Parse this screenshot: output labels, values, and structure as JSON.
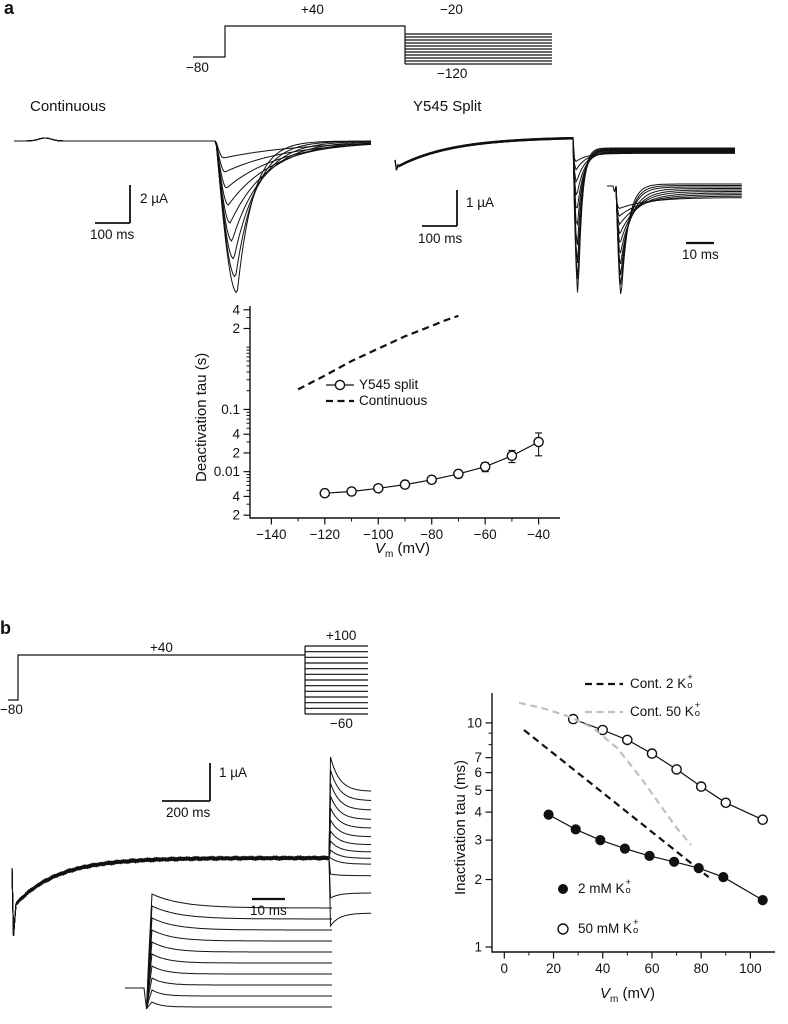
{
  "figure": {
    "panel_a_label": "a",
    "panel_b_label": "b"
  },
  "panel_a": {
    "protocol": {
      "step_label": "+40",
      "fan_top_label": "−20",
      "fan_bottom_label": "−120",
      "holding_label": "−80",
      "fan_count": 11
    },
    "trace_labels": {
      "left": "Continuous",
      "right": "Y545 Split"
    },
    "scalebars": {
      "left_vertical": "2 µA",
      "left_horizontal": "100 ms",
      "right_vertical": "1 µA",
      "right_horizontal": "100 ms",
      "inset": "10 ms"
    },
    "traces": {
      "continuous": {
        "depths": [
          152,
          136,
          118,
          100,
          82,
          64,
          47,
          31,
          17
        ],
        "taus": [
          16,
          20,
          25,
          31,
          38,
          46,
          55,
          65,
          78
        ]
      },
      "y545_main": {
        "depths": [
          148,
          132,
          114,
          96,
          78,
          61,
          45,
          30,
          17,
          8
        ],
        "taus": [
          4,
          4.5,
          5,
          5.5,
          6,
          7,
          8,
          9,
          10,
          11
        ]
      },
      "y545_inset": {
        "flat_start": 184,
        "flat_step": 1.5,
        "depths": [
          112,
          100,
          88,
          76,
          64,
          52,
          41,
          30,
          20,
          11
        ],
        "taus": [
          7,
          8,
          9,
          11,
          13,
          15,
          18,
          21,
          25,
          29
        ]
      }
    }
  },
  "panel_b": {
    "protocol": {
      "step_label": "+40",
      "fan_top_label": "+100",
      "fan_bottom_label": "−60",
      "holding_label": "−80",
      "fan_count": 13
    },
    "scalebars": {
      "vertical": "1 µA",
      "horizontal": "200 ms",
      "inset": "10 ms"
    },
    "traces": {
      "main": {
        "plateau": 858,
        "tail_offsets": [
          -101,
          -88,
          -75,
          -62,
          -50,
          -38,
          -27,
          -17,
          -8,
          0,
          16,
          40,
          68
        ]
      },
      "inset": {
        "flats": [
          908,
          919,
          930,
          941,
          952,
          963,
          974,
          985,
          996,
          1007
        ],
        "peak_drop": [
          14,
          13,
          12,
          11,
          10,
          9,
          8,
          7,
          6,
          5
        ],
        "taus": [
          30,
          27,
          24,
          21,
          18,
          16,
          14,
          12,
          10,
          9
        ]
      }
    }
  },
  "axes": {
    "a": {
      "ylabel": "Deactivation tau (s)",
      "xlabel_v": "V",
      "xlabel_sub": "m",
      "xlabel_rest": " (mV)"
    },
    "b": {
      "ylabel": "Inactivation tau (ms)",
      "xlabel_v": "V",
      "xlabel_sub": "m",
      "xlabel_rest": " (mV)"
    }
  },
  "legend_a": {
    "series1": "Y545 split",
    "series2": "Continuous"
  },
  "legend_b": {
    "cont2": {
      "text": "Cont. 2 K",
      "sup": "+",
      "sub": "o"
    },
    "cont50": {
      "text": "Cont. 50 K",
      "sup": "+",
      "sub": "o"
    },
    "k2": {
      "text": "2 mM K",
      "sup": "+",
      "sub": "o"
    },
    "k50": {
      "text": "50 mM K",
      "sup": "+",
      "sub": "o"
    }
  },
  "chart_data": [
    {
      "type": "scatter",
      "title": "",
      "xlabel": "Vm (mV)",
      "ylabel": "Deactivation tau (s)",
      "grid": false,
      "legend_position": "inside-left",
      "x_ticks": [
        -140,
        -120,
        -100,
        -80,
        -60,
        -40
      ],
      "x_tick_labels": [
        "−140",
        "−120",
        "−100",
        "−80",
        "−60",
        "−40"
      ],
      "x_minor": [
        -130,
        -110,
        -90,
        -70,
        -50
      ],
      "xlim": [
        -148,
        -32
      ],
      "yscale": "log",
      "ylim": [
        0.0018,
        4.6
      ],
      "y_tick_values": [
        4,
        2,
        0.1,
        0.04,
        0.02,
        0.01,
        0.004,
        0.002
      ],
      "y_tick_labels": [
        "4",
        "2",
        "0.1",
        "4",
        "2",
        "0.01",
        "4",
        "2"
      ],
      "series": [
        {
          "name": "Y545 split",
          "marker": "open-circle",
          "line": "solid",
          "x": [
            -120,
            -110,
            -100,
            -90,
            -80,
            -70,
            -60,
            -50,
            -40
          ],
          "y": [
            0.0045,
            0.0048,
            0.0054,
            0.0062,
            0.0074,
            0.0092,
            0.012,
            0.018,
            0.03
          ],
          "yerr": [
            0.0005,
            0.0005,
            0.0006,
            0.0007,
            0.0009,
            0.0013,
            0.002,
            0.004,
            0.012
          ]
        },
        {
          "name": "Continuous",
          "marker": "none",
          "line": "dashed",
          "x": [
            -130,
            -120,
            -110,
            -100,
            -90,
            -80,
            -75,
            -70
          ],
          "y": [
            0.21,
            0.35,
            0.6,
            0.95,
            1.5,
            2.2,
            2.7,
            3.2
          ]
        }
      ]
    },
    {
      "type": "scatter",
      "title": "",
      "xlabel": "Vm (mV)",
      "ylabel": "Inactivation tau (ms)",
      "grid": false,
      "legend_position": "inside-bottom-left",
      "x_ticks": [
        0,
        20,
        40,
        60,
        80,
        100
      ],
      "x_tick_labels": [
        "0",
        "20",
        "40",
        "60",
        "80",
        "100"
      ],
      "x_minor": [
        10,
        30,
        50,
        70,
        90
      ],
      "xlim": [
        -5,
        110
      ],
      "yscale": "log",
      "ylim": [
        0.95,
        13.6
      ],
      "y_tick_values": [
        10,
        7,
        6,
        5,
        4,
        3,
        2,
        1
      ],
      "y_tick_labels": [
        "10",
        "7",
        "6",
        "5",
        "4",
        "3",
        "2",
        "1"
      ],
      "series": [
        {
          "name": "2 mM K+o",
          "marker": "filled-circle",
          "line": "solid",
          "x": [
            18,
            29,
            39,
            49,
            59,
            69,
            79,
            89,
            105
          ],
          "y": [
            3.9,
            3.35,
            3.0,
            2.75,
            2.55,
            2.4,
            2.25,
            2.05,
            1.62
          ]
        },
        {
          "name": "50 mM K+o",
          "marker": "open-circle",
          "line": "solid",
          "x": [
            28,
            40,
            50,
            60,
            70,
            80,
            90,
            105
          ],
          "y": [
            10.4,
            9.3,
            8.4,
            7.3,
            6.2,
            5.2,
            4.4,
            3.7
          ]
        },
        {
          "name": "Cont. 2 K+o",
          "marker": "none",
          "line": "dashed",
          "color": "#111111",
          "x": [
            8,
            83
          ],
          "y": [
            9.3,
            2.05
          ]
        },
        {
          "name": "Cont. 50 K+o",
          "marker": "none",
          "line": "dashed",
          "color": "#c0c0c0",
          "x": [
            6,
            16,
            26,
            36,
            46,
            56,
            64,
            70,
            76
          ],
          "y": [
            12.3,
            11.6,
            10.7,
            9.5,
            7.7,
            5.6,
            4.2,
            3.4,
            2.85
          ]
        }
      ]
    }
  ]
}
